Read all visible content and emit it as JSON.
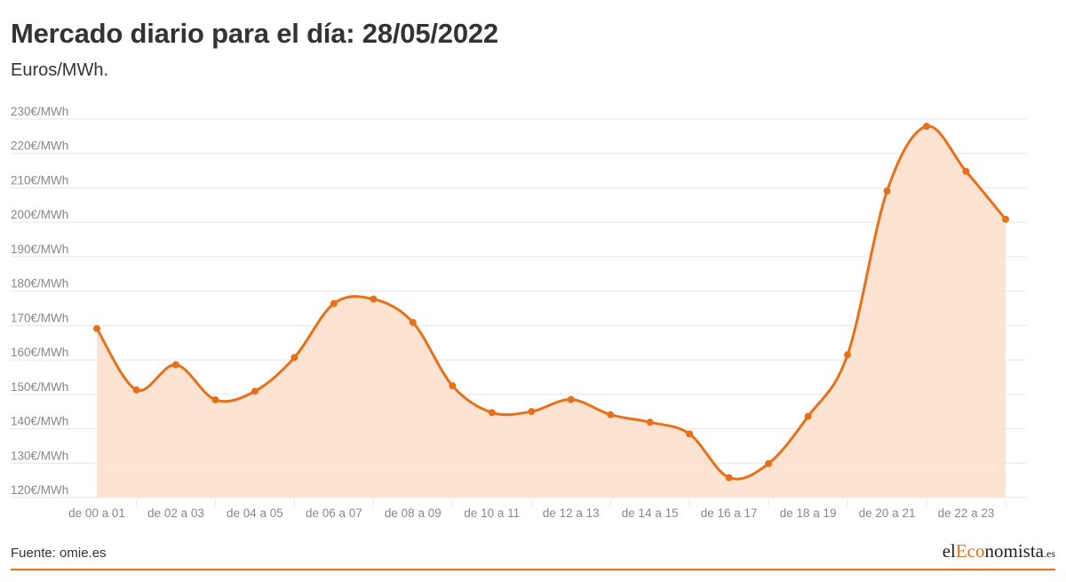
{
  "header": {
    "title": "Mercado diario para el día: 28/05/2022",
    "subtitle": "Euros/MWh."
  },
  "footer": {
    "source": "Fuente: omie.es",
    "logo": {
      "part1": "el",
      "part2": "Eco",
      "part3": "nomista",
      "part4": ".es"
    }
  },
  "colors": {
    "line": "#e8701a",
    "area": "#fde0cc",
    "grid": "#e6e6e6",
    "text": "#333333",
    "tick": "#888888"
  },
  "chart_data": {
    "type": "area",
    "title": "Mercado diario para el día: 28/05/2022",
    "subtitle": "Euros/MWh.",
    "ylim": [
      120,
      230
    ],
    "y_ticks": [
      {
        "value": 230,
        "label": "230€/MWh"
      },
      {
        "value": 220,
        "label": "220€/MWh"
      },
      {
        "value": 210,
        "label": "210€/MWh"
      },
      {
        "value": 200,
        "label": "200€/MWh"
      },
      {
        "value": 190,
        "label": "190€/MWh"
      },
      {
        "value": 180,
        "label": "180€/MWh"
      },
      {
        "value": 170,
        "label": "170€/MWh"
      },
      {
        "value": 160,
        "label": "160€/MWh"
      },
      {
        "value": 150,
        "label": "150€/MWh"
      },
      {
        "value": 140,
        "label": "140€/MWh"
      },
      {
        "value": 130,
        "label": "130€/MWh"
      },
      {
        "value": 120,
        "label": "120€/MWh"
      }
    ],
    "x_tick_labels": [
      "de 00 a 01",
      "de 02 a 03",
      "de 04 a 05",
      "de 06 a 07",
      "de 08 a 09",
      "de 10 a 11",
      "de 12 a 13",
      "de 14 a 15",
      "de 16 a 17",
      "de 18 a 19",
      "de 20 a 21",
      "de 22 a 23"
    ],
    "grid": true,
    "legend": "none",
    "series": [
      {
        "values": [
          169.1,
          151.3,
          158.6,
          148.4,
          150.9,
          160.7,
          176.4,
          177.7,
          170.9,
          152.5,
          144.7,
          145.0,
          148.5,
          144.1,
          141.9,
          138.5,
          125.8,
          129.9,
          143.6,
          161.5,
          209.1,
          227.9,
          214.8,
          200.9
        ]
      }
    ]
  }
}
